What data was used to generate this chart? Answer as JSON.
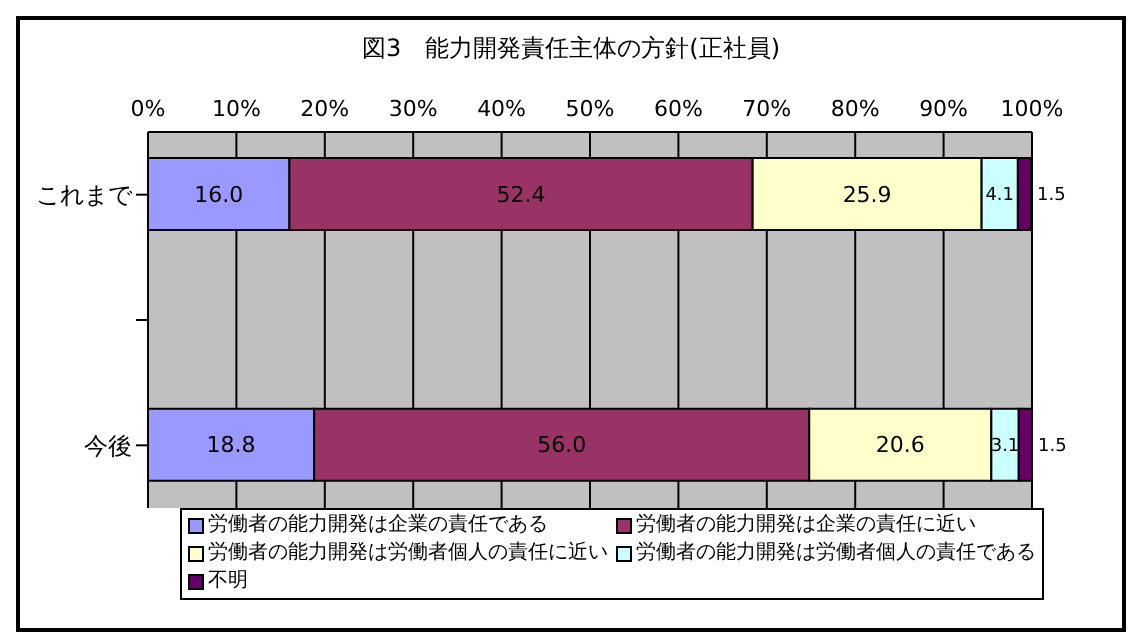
{
  "chart_data": {
    "type": "bar",
    "orientation": "horizontal",
    "stacked": true,
    "title": "図3　能力開発責任主体の方針(正社員)",
    "categories": [
      "これまで",
      null,
      "今後"
    ],
    "series": [
      {
        "name": "労働者の能力開発は企業の責任である",
        "color": "#9999ff",
        "values": [
          16.0,
          null,
          18.8
        ],
        "value_labels": [
          "16.0",
          null,
          "18.8"
        ]
      },
      {
        "name": "労働者の能力開発は企業の責任に近い",
        "color": "#993366",
        "values": [
          52.4,
          null,
          56.0
        ],
        "value_labels": [
          "52.4",
          null,
          "56.0"
        ]
      },
      {
        "name": "労働者の能力開発は労働者個人の責任に近い",
        "color": "#ffffcc",
        "values": [
          25.9,
          null,
          20.6
        ],
        "value_labels": [
          "25.9",
          null,
          "20.6"
        ]
      },
      {
        "name": "労働者の能力開発は労働者個人の責任である",
        "color": "#ccffff",
        "values": [
          4.1,
          null,
          3.1
        ],
        "value_labels": [
          "4.1",
          null,
          "3.1"
        ]
      },
      {
        "name": "不明",
        "color": "#660066",
        "values": [
          1.5,
          null,
          1.5
        ],
        "value_labels": [
          "1.5",
          null,
          "1.5"
        ]
      }
    ],
    "xlim": [
      0,
      100
    ],
    "xticks": [
      {
        "value": 0,
        "label": "0%"
      },
      {
        "value": 10,
        "label": "10%"
      },
      {
        "value": 20,
        "label": "20%"
      },
      {
        "value": 30,
        "label": "30%"
      },
      {
        "value": 40,
        "label": "40%"
      },
      {
        "value": 50,
        "label": "50%"
      },
      {
        "value": 60,
        "label": "60%"
      },
      {
        "value": 70,
        "label": "70%"
      },
      {
        "value": 80,
        "label": "80%"
      },
      {
        "value": 90,
        "label": "90%"
      },
      {
        "value": 100,
        "label": "100%"
      }
    ],
    "grid": "x",
    "legend": "bottom"
  }
}
